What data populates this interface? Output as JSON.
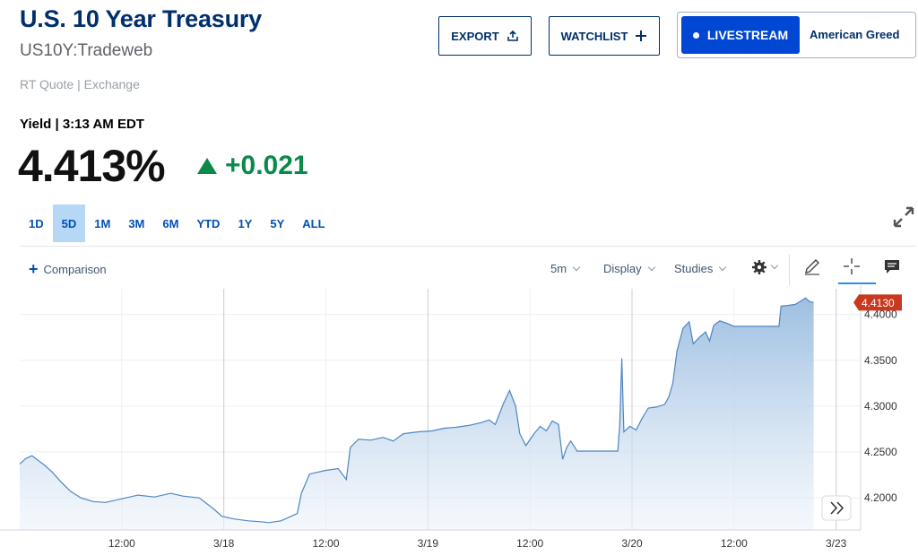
{
  "header": {
    "title": "U.S. 10 Year Treasury",
    "symbol": "US10Y:Tradeweb",
    "rt_quote": "RT Quote | Exchange",
    "yield_label": "Yield | 3:13 AM EDT",
    "price": "4.413%",
    "change": "+0.021",
    "change_color": "#0a8a4a"
  },
  "actions": {
    "export_label": "EXPORT",
    "watchlist_label": "WATCHLIST",
    "livestream_label": "LIVESTREAM",
    "show_label": "American Greed"
  },
  "ranges": {
    "items": [
      "1D",
      "5D",
      "1M",
      "3M",
      "6M",
      "YTD",
      "1Y",
      "5Y",
      "ALL"
    ],
    "selected": "5D"
  },
  "toolbar": {
    "comparison_label": "Comparison",
    "interval": "5m",
    "display_label": "Display",
    "studies_label": "Studies"
  },
  "chart_data": {
    "type": "area",
    "series_color": "#4e86c2",
    "last_value_label": "4.4130",
    "last_value_color": "#c8391f",
    "ylim": [
      4.165,
      4.428
    ],
    "y_ticks": [
      "4.4000",
      "4.3500",
      "4.3000",
      "4.2500",
      "4.2000"
    ],
    "y_tick_values": [
      4.4,
      4.35,
      4.3,
      4.25,
      4.2
    ],
    "x_tick_labels": [
      "12:00",
      "3/18",
      "12:00",
      "3/19",
      "12:00",
      "3/20",
      "12:00",
      "3/23"
    ],
    "x_tick_positions": [
      0.5,
      1,
      1.5,
      2,
      2.5,
      3,
      3.5,
      4
    ],
    "x_range": [
      0,
      4.12
    ],
    "day_separators": [
      1,
      2,
      3,
      4
    ],
    "points": [
      [
        0.0,
        4.237
      ],
      [
        0.03,
        4.243
      ],
      [
        0.06,
        4.246
      ],
      [
        0.09,
        4.241
      ],
      [
        0.12,
        4.236
      ],
      [
        0.16,
        4.228
      ],
      [
        0.2,
        4.218
      ],
      [
        0.25,
        4.207
      ],
      [
        0.3,
        4.2
      ],
      [
        0.36,
        4.196
      ],
      [
        0.42,
        4.195
      ],
      [
        0.5,
        4.199
      ],
      [
        0.58,
        4.203
      ],
      [
        0.66,
        4.201
      ],
      [
        0.74,
        4.205
      ],
      [
        0.8,
        4.202
      ],
      [
        0.88,
        4.2
      ],
      [
        0.95,
        4.188
      ],
      [
        0.99,
        4.18
      ],
      [
        1.05,
        4.177
      ],
      [
        1.12,
        4.175
      ],
      [
        1.18,
        4.174
      ],
      [
        1.22,
        4.173
      ],
      [
        1.28,
        4.175
      ],
      [
        1.33,
        4.18
      ],
      [
        1.36,
        4.183
      ],
      [
        1.38,
        4.205
      ],
      [
        1.42,
        4.226
      ],
      [
        1.5,
        4.23
      ],
      [
        1.56,
        4.232
      ],
      [
        1.6,
        4.22
      ],
      [
        1.62,
        4.255
      ],
      [
        1.66,
        4.264
      ],
      [
        1.72,
        4.263
      ],
      [
        1.78,
        4.266
      ],
      [
        1.83,
        4.262
      ],
      [
        1.88,
        4.27
      ],
      [
        1.95,
        4.272
      ],
      [
        2.02,
        4.273
      ],
      [
        2.08,
        4.276
      ],
      [
        2.14,
        4.277
      ],
      [
        2.2,
        4.279
      ],
      [
        2.26,
        4.282
      ],
      [
        2.3,
        4.285
      ],
      [
        2.33,
        4.28
      ],
      [
        2.37,
        4.303
      ],
      [
        2.4,
        4.317
      ],
      [
        2.43,
        4.3
      ],
      [
        2.45,
        4.27
      ],
      [
        2.48,
        4.257
      ],
      [
        2.52,
        4.27
      ],
      [
        2.55,
        4.278
      ],
      [
        2.58,
        4.273
      ],
      [
        2.61,
        4.284
      ],
      [
        2.64,
        4.28
      ],
      [
        2.66,
        4.242
      ],
      [
        2.68,
        4.255
      ],
      [
        2.7,
        4.262
      ],
      [
        2.72,
        4.255
      ],
      [
        2.73,
        4.251
      ],
      [
        2.79,
        4.251
      ],
      [
        2.85,
        4.251
      ],
      [
        2.9,
        4.251
      ],
      [
        2.93,
        4.251
      ],
      [
        2.94,
        4.28
      ],
      [
        2.95,
        4.352
      ],
      [
        2.96,
        4.272
      ],
      [
        2.99,
        4.278
      ],
      [
        3.02,
        4.274
      ],
      [
        3.05,
        4.287
      ],
      [
        3.08,
        4.298
      ],
      [
        3.12,
        4.299
      ],
      [
        3.16,
        4.302
      ],
      [
        3.18,
        4.31
      ],
      [
        3.2,
        4.325
      ],
      [
        3.22,
        4.36
      ],
      [
        3.25,
        4.385
      ],
      [
        3.28,
        4.392
      ],
      [
        3.3,
        4.368
      ],
      [
        3.33,
        4.375
      ],
      [
        3.36,
        4.381
      ],
      [
        3.38,
        4.371
      ],
      [
        3.4,
        4.388
      ],
      [
        3.43,
        4.393
      ],
      [
        3.47,
        4.39
      ],
      [
        3.5,
        4.387
      ],
      [
        3.56,
        4.387
      ],
      [
        3.62,
        4.387
      ],
      [
        3.68,
        4.387
      ],
      [
        3.72,
        4.387
      ],
      [
        3.73,
        4.409
      ],
      [
        3.77,
        4.41
      ],
      [
        3.8,
        4.411
      ],
      [
        3.83,
        4.415
      ],
      [
        3.85,
        4.418
      ],
      [
        3.87,
        4.414
      ],
      [
        3.89,
        4.413
      ]
    ]
  }
}
